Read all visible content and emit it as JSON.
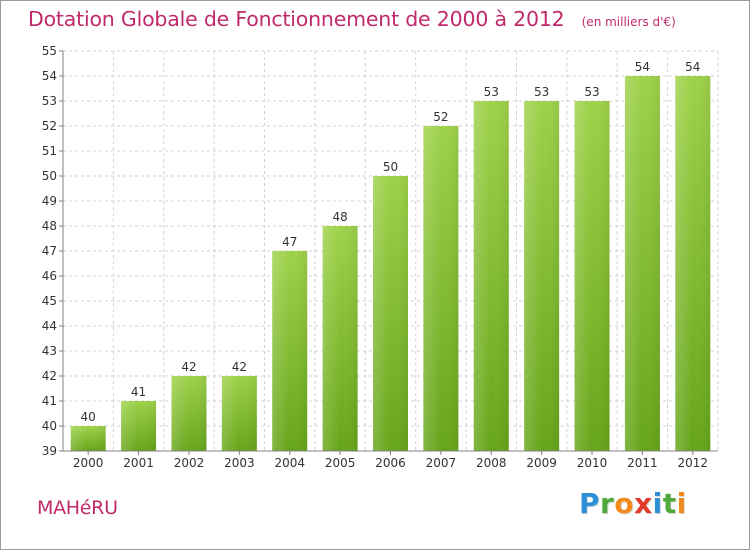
{
  "chart_data": {
    "type": "bar",
    "title": "Dotation Globale de Fonctionnement de 2000 à 2012",
    "unit": "(en milliers d'€)",
    "categories": [
      "2000",
      "2001",
      "2002",
      "2003",
      "2004",
      "2005",
      "2006",
      "2007",
      "2008",
      "2009",
      "2010",
      "2011",
      "2012"
    ],
    "values": [
      40,
      41,
      42,
      42,
      47,
      48,
      50,
      52,
      53,
      53,
      53,
      54,
      54
    ],
    "ylim": [
      39,
      55
    ],
    "yticks": [
      39,
      40,
      41,
      42,
      43,
      44,
      45,
      46,
      47,
      48,
      49,
      50,
      51,
      52,
      53,
      54,
      55
    ],
    "grid": true,
    "xlabel": "",
    "ylabel": ""
  },
  "footer": {
    "town": "MAHéRU",
    "brand": "Proxiti"
  },
  "colors": {
    "title": "#c02a6b",
    "bar_light": "#9ed24a",
    "bar_dark": "#66a51a",
    "grid": "#d0d0d0",
    "brand_letters": [
      "#2d8fd6",
      "#4fa83a",
      "#f08a1c",
      "#e23a2a",
      "#2d8fd6",
      "#4fa83a",
      "#f08a1c"
    ]
  }
}
